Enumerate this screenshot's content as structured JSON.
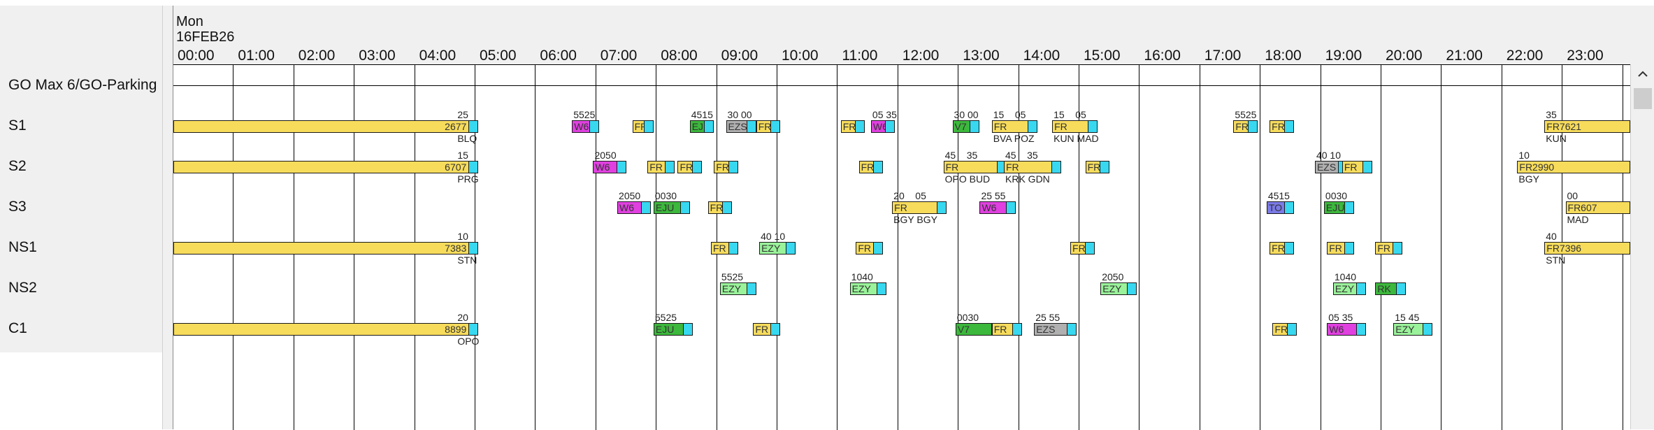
{
  "header": {
    "day": "Mon",
    "date": "16FEB26"
  },
  "hours": [
    "00:00",
    "01:00",
    "02:00",
    "03:00",
    "04:00",
    "05:00",
    "06:00",
    "07:00",
    "08:00",
    "09:00",
    "10:00",
    "11:00",
    "12:00",
    "13:00",
    "14:00",
    "15:00",
    "16:00",
    "17:00",
    "18:00",
    "19:00",
    "20:00",
    "21:00",
    "22:00",
    "23:00"
  ],
  "rows": [
    {
      "label": "GO Max 6/GO-Parking"
    },
    {
      "label": "S1"
    },
    {
      "label": "S2"
    },
    {
      "label": "S3"
    },
    {
      "label": "NS1"
    },
    {
      "label": "NS2"
    },
    {
      "label": "C1"
    }
  ],
  "colors": {
    "FR": "#f7dc5c",
    "W6": "#e040e0",
    "EJU": "#3cb83c",
    "EZS": "#b0b0b0",
    "EZY": "#9af29a",
    "V7": "#3cb83c",
    "RK": "#3cb83c",
    "TO": "#7a7ae8",
    "turnaround": "#38d8f0"
  },
  "bars": [
    {
      "row": 1,
      "start": 0,
      "end": 5.05,
      "type": "FR",
      "code": "2677",
      "tail": true,
      "above": "25",
      "below": "BLQ"
    },
    {
      "row": 1,
      "start": 6.6,
      "end": 7.05,
      "type": "W6",
      "code": "W6",
      "tail": true,
      "above": "5525"
    },
    {
      "row": 1,
      "start": 7.6,
      "end": 7.95,
      "type": "FR",
      "code": "FR",
      "tail": true
    },
    {
      "row": 1,
      "start": 8.55,
      "end": 8.95,
      "type": "EJU",
      "code": "EJU",
      "tail": true,
      "above": "4515"
    },
    {
      "row": 1,
      "start": 9.15,
      "end": 9.65,
      "type": "EZS",
      "code": "EZS",
      "tail": true,
      "above": "30 00"
    },
    {
      "row": 1,
      "start": 9.65,
      "end": 10.05,
      "type": "FR",
      "code": "FR",
      "tail": true
    },
    {
      "row": 1,
      "start": 11.05,
      "end": 11.45,
      "type": "FR",
      "code": "FR",
      "tail": true
    },
    {
      "row": 1,
      "start": 11.55,
      "end": 11.95,
      "type": "W6",
      "code": "W6",
      "tail": true,
      "above": "05 35"
    },
    {
      "row": 1,
      "start": 12.9,
      "end": 13.35,
      "type": "V7",
      "code": "V7",
      "tail": true,
      "above": "30 00"
    },
    {
      "row": 1,
      "start": 13.55,
      "end": 14.3,
      "type": "FR",
      "code": "FR",
      "tail": true,
      "above": "15    05",
      "below": "BVA POZ"
    },
    {
      "row": 1,
      "start": 14.55,
      "end": 15.3,
      "type": "FR",
      "code": "FR",
      "tail": true,
      "above": "15    05",
      "below": "KUN MAD"
    },
    {
      "row": 1,
      "start": 17.55,
      "end": 17.95,
      "type": "FR",
      "code": "FR",
      "tail": true,
      "above": "5525"
    },
    {
      "row": 1,
      "start": 18.15,
      "end": 18.55,
      "type": "FR",
      "code": "FR",
      "tail": true
    },
    {
      "row": 1,
      "start": 22.7,
      "end": 24.5,
      "type": "FR",
      "code": "FR7621",
      "tail": false,
      "above": "35",
      "below": "KUN"
    },
    {
      "row": 2,
      "start": 0,
      "end": 5.05,
      "type": "FR",
      "code": "6707",
      "tail": true,
      "above": "15",
      "below": "PRG"
    },
    {
      "row": 2,
      "start": 6.95,
      "end": 7.5,
      "type": "W6",
      "code": "W6",
      "tail": true,
      "above": "2050"
    },
    {
      "row": 2,
      "start": 7.85,
      "end": 8.3,
      "type": "FR",
      "code": "FR",
      "tail": true
    },
    {
      "row": 2,
      "start": 8.35,
      "end": 8.75,
      "type": "FR",
      "code": "FR",
      "tail": true
    },
    {
      "row": 2,
      "start": 8.95,
      "end": 9.35,
      "type": "FR",
      "code": "FR",
      "tail": true
    },
    {
      "row": 2,
      "start": 11.35,
      "end": 11.75,
      "type": "FR",
      "code": "FR",
      "tail": true
    },
    {
      "row": 2,
      "start": 12.75,
      "end": 13.8,
      "type": "FR",
      "code": "FR",
      "tail": true,
      "above": "45    35",
      "below": "OPO BUD"
    },
    {
      "row": 2,
      "start": 13.75,
      "end": 14.7,
      "type": "FR",
      "code": "FR",
      "tail": true,
      "above": "45    35",
      "below": "KRK GDN"
    },
    {
      "row": 2,
      "start": 15.1,
      "end": 15.5,
      "type": "FR",
      "code": "FR",
      "tail": true
    },
    {
      "row": 2,
      "start": 18.9,
      "end": 19.45,
      "type": "EZS",
      "code": "EZS",
      "tail": true,
      "above": "40 10"
    },
    {
      "row": 2,
      "start": 19.35,
      "end": 19.85,
      "type": "FR",
      "code": "FR",
      "tail": true
    },
    {
      "row": 2,
      "start": 22.25,
      "end": 24.5,
      "type": "FR",
      "code": "FR2990",
      "tail": false,
      "above": "10",
      "below": "BGY"
    },
    {
      "row": 3,
      "start": 7.35,
      "end": 7.9,
      "type": "W6",
      "code": "W6",
      "tail": true,
      "above": "2050"
    },
    {
      "row": 3,
      "start": 7.95,
      "end": 8.55,
      "type": "EJU",
      "code": "EJU",
      "tail": true,
      "above": "0030"
    },
    {
      "row": 3,
      "start": 8.85,
      "end": 9.25,
      "type": "FR",
      "code": "FR",
      "tail": true
    },
    {
      "row": 3,
      "start": 11.9,
      "end": 12.8,
      "type": "FR",
      "code": "FR",
      "tail": true,
      "above": "20    05",
      "below": "BGY BGY"
    },
    {
      "row": 3,
      "start": 13.35,
      "end": 13.95,
      "type": "W6",
      "code": "W6",
      "tail": true,
      "above": "25 55"
    },
    {
      "row": 3,
      "start": 18.1,
      "end": 18.55,
      "type": "TO",
      "code": "TO",
      "tail": true,
      "above": "4515"
    },
    {
      "row": 3,
      "start": 19.05,
      "end": 19.55,
      "type": "EJU",
      "code": "EJU",
      "tail": true,
      "above": "0030"
    },
    {
      "row": 3,
      "start": 23.05,
      "end": 24.5,
      "type": "FR",
      "code": "FR607",
      "tail": false,
      "above": "00",
      "below": "MAD"
    },
    {
      "row": 4,
      "start": 0,
      "end": 5.05,
      "type": "FR",
      "code": "7383",
      "tail": true,
      "above": "10",
      "below": "STN"
    },
    {
      "row": 4,
      "start": 8.9,
      "end": 9.35,
      "type": "FR",
      "code": "FR",
      "tail": true
    },
    {
      "row": 4,
      "start": 9.7,
      "end": 10.3,
      "type": "EZY",
      "code": "EZY",
      "tail": true,
      "above": "40 10"
    },
    {
      "row": 4,
      "start": 11.3,
      "end": 11.75,
      "type": "FR",
      "code": "FR",
      "tail": true
    },
    {
      "row": 4,
      "start": 14.85,
      "end": 15.25,
      "type": "FR",
      "code": "FR",
      "tail": true
    },
    {
      "row": 4,
      "start": 18.15,
      "end": 18.55,
      "type": "FR",
      "code": "FR",
      "tail": true
    },
    {
      "row": 4,
      "start": 19.1,
      "end": 19.55,
      "type": "FR",
      "code": "FR",
      "tail": true
    },
    {
      "row": 4,
      "start": 19.9,
      "end": 20.35,
      "type": "FR",
      "code": "FR",
      "tail": true
    },
    {
      "row": 4,
      "start": 22.7,
      "end": 24.5,
      "type": "FR",
      "code": "FR7396",
      "tail": false,
      "above": "40",
      "below": "STN"
    },
    {
      "row": 5,
      "start": 9.05,
      "end": 9.65,
      "type": "EZY",
      "code": "EZY",
      "tail": true,
      "above": "5525"
    },
    {
      "row": 5,
      "start": 11.2,
      "end": 11.8,
      "type": "EZY",
      "code": "EZY",
      "tail": true,
      "above": "1040"
    },
    {
      "row": 5,
      "start": 15.35,
      "end": 15.95,
      "type": "EZY",
      "code": "EZY",
      "tail": true,
      "above": "2050"
    },
    {
      "row": 5,
      "start": 19.2,
      "end": 19.75,
      "type": "EZY",
      "code": "EZY",
      "tail": true,
      "above": "1040"
    },
    {
      "row": 5,
      "start": 19.9,
      "end": 20.4,
      "type": "RK",
      "code": "RK",
      "tail": true
    },
    {
      "row": 6,
      "start": 0,
      "end": 5.05,
      "type": "FR",
      "code": "8899",
      "tail": true,
      "above": "20",
      "below": "OPO"
    },
    {
      "row": 6,
      "start": 7.95,
      "end": 8.6,
      "type": "EJU",
      "code": "EJU",
      "tail": true,
      "above": "5525"
    },
    {
      "row": 6,
      "start": 9.6,
      "end": 10.05,
      "type": "FR",
      "code": "FR",
      "tail": true
    },
    {
      "row": 6,
      "start": 12.95,
      "end": 13.55,
      "type": "V7",
      "code": "V7",
      "tail": false,
      "above": "0030"
    },
    {
      "row": 6,
      "start": 13.55,
      "end": 14.05,
      "type": "FR",
      "code": "FR",
      "tail": true
    },
    {
      "row": 6,
      "start": 14.25,
      "end": 14.95,
      "type": "EZS",
      "code": "EZS",
      "tail": true,
      "above": "25 55"
    },
    {
      "row": 6,
      "start": 18.2,
      "end": 18.6,
      "type": "FR",
      "code": "FR",
      "tail": true
    },
    {
      "row": 6,
      "start": 19.1,
      "end": 19.75,
      "type": "W6",
      "code": "W6",
      "tail": true,
      "above": "05 35"
    },
    {
      "row": 6,
      "start": 20.2,
      "end": 20.85,
      "type": "EZY",
      "code": "EZY",
      "tail": true,
      "above": "15 45"
    }
  ]
}
